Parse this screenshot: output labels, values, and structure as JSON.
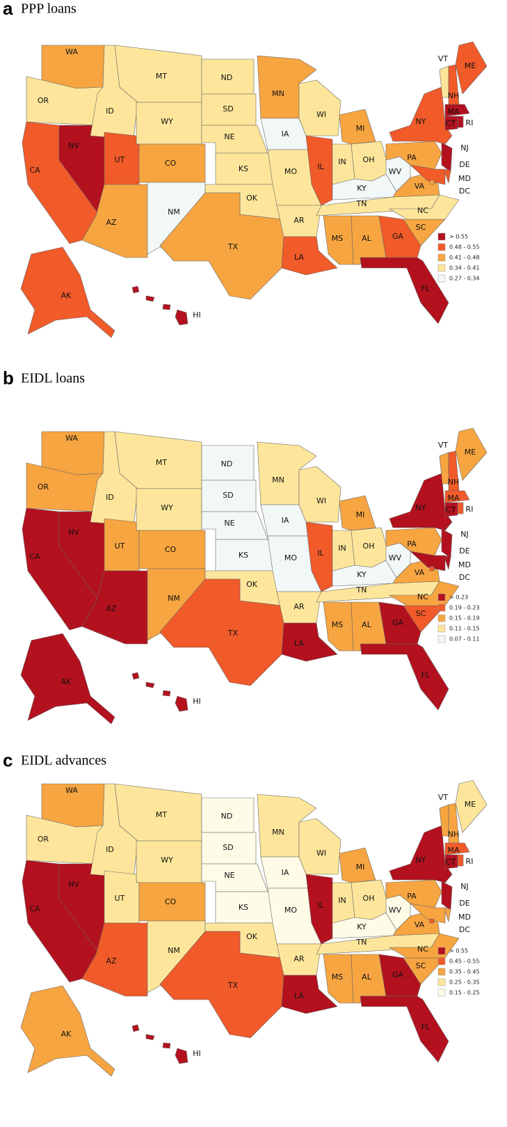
{
  "panels": [
    {
      "letter": "a",
      "title": "PPP loans",
      "legend": [
        {
          "label": "> 0.55",
          "color": "#b3111e"
        },
        {
          "label": "0.48 - 0.55",
          "color": "#f15a29"
        },
        {
          "label": "0.41 - 0.48",
          "color": "#f7a541"
        },
        {
          "label": "0.34 - 0.41",
          "color": "#fde69b"
        },
        {
          "label": "0.27 - 0.34",
          "color": "#f2f7f7"
        }
      ],
      "states": [
        {
          "label": "WA",
          "color": "#f7a541"
        },
        {
          "label": "OR",
          "color": "#fde69b"
        },
        {
          "label": "CA",
          "color": "#f15a29"
        },
        {
          "label": "NV",
          "color": "#b3111e"
        },
        {
          "label": "ID",
          "color": "#fde69b"
        },
        {
          "label": "MT",
          "color": "#fde69b"
        },
        {
          "label": "WY",
          "color": "#fde69b"
        },
        {
          "label": "UT",
          "color": "#f15a29"
        },
        {
          "label": "CO",
          "color": "#f7a541"
        },
        {
          "label": "AZ",
          "color": "#f7a541"
        },
        {
          "label": "NM",
          "color": "#f2f7f7"
        },
        {
          "label": "ND",
          "color": "#fde69b"
        },
        {
          "label": "SD",
          "color": "#fde69b"
        },
        {
          "label": "NE",
          "color": "#fde69b"
        },
        {
          "label": "KS",
          "color": "#fde69b"
        },
        {
          "label": "OK",
          "color": "#fde69b"
        },
        {
          "label": "TX",
          "color": "#f7a541"
        },
        {
          "label": "MN",
          "color": "#f7a541"
        },
        {
          "label": "IA",
          "color": "#f2f7f7"
        },
        {
          "label": "MO",
          "color": "#fde69b"
        },
        {
          "label": "AR",
          "color": "#fde69b"
        },
        {
          "label": "LA",
          "color": "#f15a29"
        },
        {
          "label": "WI",
          "color": "#fde69b"
        },
        {
          "label": "IL",
          "color": "#f15a29"
        },
        {
          "label": "MI",
          "color": "#f7a541"
        },
        {
          "label": "IN",
          "color": "#fde69b"
        },
        {
          "label": "OH",
          "color": "#fde69b"
        },
        {
          "label": "KY",
          "color": "#f2f7f7"
        },
        {
          "label": "TN",
          "color": "#fde69b"
        },
        {
          "label": "MS",
          "color": "#f7a541"
        },
        {
          "label": "AL",
          "color": "#f7a541"
        },
        {
          "label": "GA",
          "color": "#f15a29"
        },
        {
          "label": "FL",
          "color": "#b3111e"
        },
        {
          "label": "SC",
          "color": "#f7a541"
        },
        {
          "label": "NC",
          "color": "#fde69b"
        },
        {
          "label": "VA",
          "color": "#f7a541"
        },
        {
          "label": "WV",
          "color": "#f2f7f7"
        },
        {
          "label": "PA",
          "color": "#f7a541"
        },
        {
          "label": "NY",
          "color": "#f15a29"
        },
        {
          "label": "VT",
          "color": "#fde69b"
        },
        {
          "label": "NH",
          "color": "#f15a29"
        },
        {
          "label": "ME",
          "color": "#f15a29"
        },
        {
          "label": "MA",
          "color": "#b3111e"
        },
        {
          "label": "CT",
          "color": "#b3111e"
        },
        {
          "label": "RI",
          "color": "#b3111e"
        },
        {
          "label": "NJ",
          "color": "#b3111e"
        },
        {
          "label": "DE",
          "color": "#f15a29"
        },
        {
          "label": "MD",
          "color": "#f15a29"
        },
        {
          "label": "DC",
          "color": "#f7a541"
        },
        {
          "label": "AK",
          "color": "#f15a29"
        },
        {
          "label": "HI",
          "color": "#b3111e"
        }
      ]
    },
    {
      "letter": "b",
      "title": "EIDL loans",
      "legend": [
        {
          "label": "> 0.23",
          "color": "#b3111e"
        },
        {
          "label": "0.19 - 0.23",
          "color": "#f15a29"
        },
        {
          "label": "0.15 - 0.19",
          "color": "#f7a541"
        },
        {
          "label": "0.11 - 0.15",
          "color": "#fde69b"
        },
        {
          "label": "0.07 - 0.11",
          "color": "#f2f7f7"
        }
      ],
      "states": [
        {
          "label": "WA",
          "color": "#f7a541"
        },
        {
          "label": "OR",
          "color": "#f7a541"
        },
        {
          "label": "CA",
          "color": "#b3111e"
        },
        {
          "label": "NV",
          "color": "#b3111e"
        },
        {
          "label": "ID",
          "color": "#fde69b"
        },
        {
          "label": "MT",
          "color": "#fde69b"
        },
        {
          "label": "WY",
          "color": "#fde69b"
        },
        {
          "label": "UT",
          "color": "#f7a541"
        },
        {
          "label": "CO",
          "color": "#f7a541"
        },
        {
          "label": "AZ",
          "color": "#b3111e"
        },
        {
          "label": "NM",
          "color": "#f7a541"
        },
        {
          "label": "ND",
          "color": "#f2f7f7"
        },
        {
          "label": "SD",
          "color": "#f2f7f7"
        },
        {
          "label": "NE",
          "color": "#f2f7f7"
        },
        {
          "label": "KS",
          "color": "#f2f7f7"
        },
        {
          "label": "OK",
          "color": "#fde69b"
        },
        {
          "label": "TX",
          "color": "#f15a29"
        },
        {
          "label": "MN",
          "color": "#fde69b"
        },
        {
          "label": "IA",
          "color": "#f2f7f7"
        },
        {
          "label": "MO",
          "color": "#f2f7f7"
        },
        {
          "label": "AR",
          "color": "#fde69b"
        },
        {
          "label": "LA",
          "color": "#b3111e"
        },
        {
          "label": "WI",
          "color": "#fde69b"
        },
        {
          "label": "IL",
          "color": "#f15a29"
        },
        {
          "label": "MI",
          "color": "#f7a541"
        },
        {
          "label": "IN",
          "color": "#fde69b"
        },
        {
          "label": "OH",
          "color": "#fde69b"
        },
        {
          "label": "KY",
          "color": "#f2f7f7"
        },
        {
          "label": "TN",
          "color": "#fde69b"
        },
        {
          "label": "MS",
          "color": "#f7a541"
        },
        {
          "label": "AL",
          "color": "#f7a541"
        },
        {
          "label": "GA",
          "color": "#b3111e"
        },
        {
          "label": "FL",
          "color": "#b3111e"
        },
        {
          "label": "SC",
          "color": "#f15a29"
        },
        {
          "label": "NC",
          "color": "#f7a541"
        },
        {
          "label": "VA",
          "color": "#f7a541"
        },
        {
          "label": "WV",
          "color": "#f2f7f7"
        },
        {
          "label": "PA",
          "color": "#f7a541"
        },
        {
          "label": "NY",
          "color": "#b3111e"
        },
        {
          "label": "VT",
          "color": "#f7a541"
        },
        {
          "label": "NH",
          "color": "#f15a29"
        },
        {
          "label": "ME",
          "color": "#f7a541"
        },
        {
          "label": "MA",
          "color": "#f15a29"
        },
        {
          "label": "CT",
          "color": "#b3111e"
        },
        {
          "label": "RI",
          "color": "#f15a29"
        },
        {
          "label": "NJ",
          "color": "#b3111e"
        },
        {
          "label": "DE",
          "color": "#b3111e"
        },
        {
          "label": "MD",
          "color": "#b3111e"
        },
        {
          "label": "DC",
          "color": "#f15a29"
        },
        {
          "label": "AK",
          "color": "#b3111e"
        },
        {
          "label": "HI",
          "color": "#b3111e"
        }
      ]
    },
    {
      "letter": "c",
      "title": "EIDL advances",
      "legend": [
        {
          "label": "> 0.55",
          "color": "#b3111e"
        },
        {
          "label": "0.45 - 0.55",
          "color": "#f15a29"
        },
        {
          "label": "0.35 - 0.45",
          "color": "#f7a541"
        },
        {
          "label": "0.25 - 0.35",
          "color": "#fde69b"
        },
        {
          "label": "0.15 - 0.25",
          "color": "#fefbe6"
        }
      ],
      "states": [
        {
          "label": "WA",
          "color": "#f7a541"
        },
        {
          "label": "OR",
          "color": "#fde69b"
        },
        {
          "label": "CA",
          "color": "#b3111e"
        },
        {
          "label": "NV",
          "color": "#b3111e"
        },
        {
          "label": "ID",
          "color": "#fde69b"
        },
        {
          "label": "MT",
          "color": "#fde69b"
        },
        {
          "label": "WY",
          "color": "#fde69b"
        },
        {
          "label": "UT",
          "color": "#fde69b"
        },
        {
          "label": "CO",
          "color": "#f7a541"
        },
        {
          "label": "AZ",
          "color": "#f15a29"
        },
        {
          "label": "NM",
          "color": "#fde69b"
        },
        {
          "label": "ND",
          "color": "#fefbe6"
        },
        {
          "label": "SD",
          "color": "#fefbe6"
        },
        {
          "label": "NE",
          "color": "#fefbe6"
        },
        {
          "label": "KS",
          "color": "#fefbe6"
        },
        {
          "label": "OK",
          "color": "#fde69b"
        },
        {
          "label": "TX",
          "color": "#f15a29"
        },
        {
          "label": "MN",
          "color": "#fde69b"
        },
        {
          "label": "IA",
          "color": "#fefbe6"
        },
        {
          "label": "MO",
          "color": "#fefbe6"
        },
        {
          "label": "AR",
          "color": "#fde69b"
        },
        {
          "label": "LA",
          "color": "#b3111e"
        },
        {
          "label": "WI",
          "color": "#fde69b"
        },
        {
          "label": "IL",
          "color": "#b3111e"
        },
        {
          "label": "MI",
          "color": "#f7a541"
        },
        {
          "label": "IN",
          "color": "#fde69b"
        },
        {
          "label": "OH",
          "color": "#fde69b"
        },
        {
          "label": "KY",
          "color": "#fefbe6"
        },
        {
          "label": "TN",
          "color": "#fde69b"
        },
        {
          "label": "MS",
          "color": "#f7a541"
        },
        {
          "label": "AL",
          "color": "#f7a541"
        },
        {
          "label": "GA",
          "color": "#b3111e"
        },
        {
          "label": "FL",
          "color": "#b3111e"
        },
        {
          "label": "SC",
          "color": "#f7a541"
        },
        {
          "label": "NC",
          "color": "#f7a541"
        },
        {
          "label": "VA",
          "color": "#f7a541"
        },
        {
          "label": "WV",
          "color": "#fefbe6"
        },
        {
          "label": "PA",
          "color": "#f7a541"
        },
        {
          "label": "NY",
          "color": "#b3111e"
        },
        {
          "label": "VT",
          "color": "#f7a541"
        },
        {
          "label": "NH",
          "color": "#f7a541"
        },
        {
          "label": "ME",
          "color": "#fde69b"
        },
        {
          "label": "MA",
          "color": "#f15a29"
        },
        {
          "label": "CT",
          "color": "#b3111e"
        },
        {
          "label": "RI",
          "color": "#f15a29"
        },
        {
          "label": "NJ",
          "color": "#b3111e"
        },
        {
          "label": "DE",
          "color": "#f7a541"
        },
        {
          "label": "MD",
          "color": "#f7a541"
        },
        {
          "label": "DC",
          "color": "#f15a29"
        },
        {
          "label": "AK",
          "color": "#f7a541"
        },
        {
          "label": "HI",
          "color": "#b3111e"
        }
      ]
    }
  ]
}
